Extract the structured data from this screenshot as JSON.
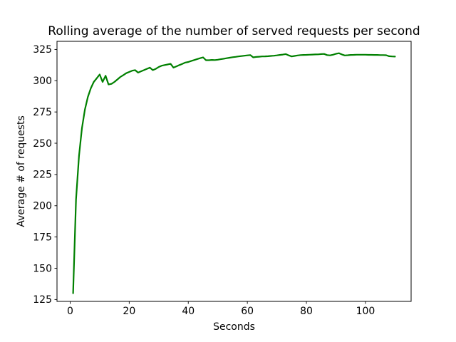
{
  "chart_data": {
    "type": "line",
    "title": "Rolling average of the number of served requests per second",
    "xlabel": "Seconds",
    "ylabel": "Average # of requests",
    "legend": null,
    "grid": false,
    "line_color": "#008000",
    "axis_color": "#000000",
    "background_color": "#ffffff",
    "xlim": [
      -4.45,
      115.45
    ],
    "ylim": [
      123.5,
      331.5
    ],
    "xticks": [
      0,
      20,
      40,
      60,
      80,
      100
    ],
    "yticks": [
      125,
      150,
      175,
      200,
      225,
      250,
      275,
      300,
      325
    ],
    "x": [
      1,
      2,
      3,
      4,
      5,
      6,
      7,
      8,
      9,
      10,
      11,
      12,
      13,
      14,
      15,
      16,
      17,
      18,
      19,
      20,
      21,
      22,
      23,
      24,
      25,
      26,
      27,
      28,
      29,
      30,
      31,
      32,
      33,
      34,
      35,
      36,
      37,
      38,
      39,
      40,
      41,
      42,
      43,
      44,
      45,
      46,
      47,
      48,
      49,
      50,
      51,
      52,
      53,
      54,
      55,
      56,
      57,
      58,
      59,
      60,
      61,
      62,
      63,
      64,
      65,
      66,
      67,
      68,
      69,
      70,
      71,
      72,
      73,
      74,
      75,
      76,
      77,
      78,
      79,
      80,
      81,
      82,
      83,
      84,
      85,
      86,
      87,
      88,
      89,
      90,
      91,
      92,
      93,
      94,
      95,
      96,
      97,
      98,
      99,
      100,
      101,
      102,
      103,
      104,
      105,
      106,
      107,
      108,
      109,
      110
    ],
    "y": [
      130,
      205,
      240,
      262,
      277,
      287,
      294,
      299,
      302,
      305,
      299,
      304,
      297,
      297.5,
      299,
      301,
      303,
      304.5,
      306,
      307,
      308,
      308.5,
      306.5,
      307.5,
      308.5,
      309.5,
      310.5,
      308.5,
      309.5,
      311,
      312,
      312.5,
      313,
      313.5,
      310.5,
      311.5,
      312.5,
      313.5,
      314.5,
      315,
      315.8,
      316.5,
      317.3,
      318,
      318.7,
      316.4,
      316.4,
      316.6,
      316.5,
      316.8,
      317.2,
      317.6,
      318,
      318.4,
      318.8,
      319.1,
      319.4,
      319.7,
      320,
      320.3,
      320.5,
      318.7,
      319,
      319.2,
      319.4,
      319.5,
      319.6,
      319.8,
      320,
      320.3,
      320.6,
      320.9,
      321.3,
      320.3,
      319.4,
      319.8,
      320.2,
      320.5,
      320.6,
      320.7,
      320.8,
      320.9,
      321,
      321.1,
      321.3,
      321.4,
      320.5,
      320.3,
      320.8,
      321.5,
      322,
      321,
      320.2,
      320.4,
      320.6,
      320.7,
      320.8,
      320.8,
      320.8,
      320.8,
      320.7,
      320.7,
      320.6,
      320.6,
      320.5,
      320.5,
      320.4,
      319.6,
      319.4,
      319.3
    ]
  }
}
